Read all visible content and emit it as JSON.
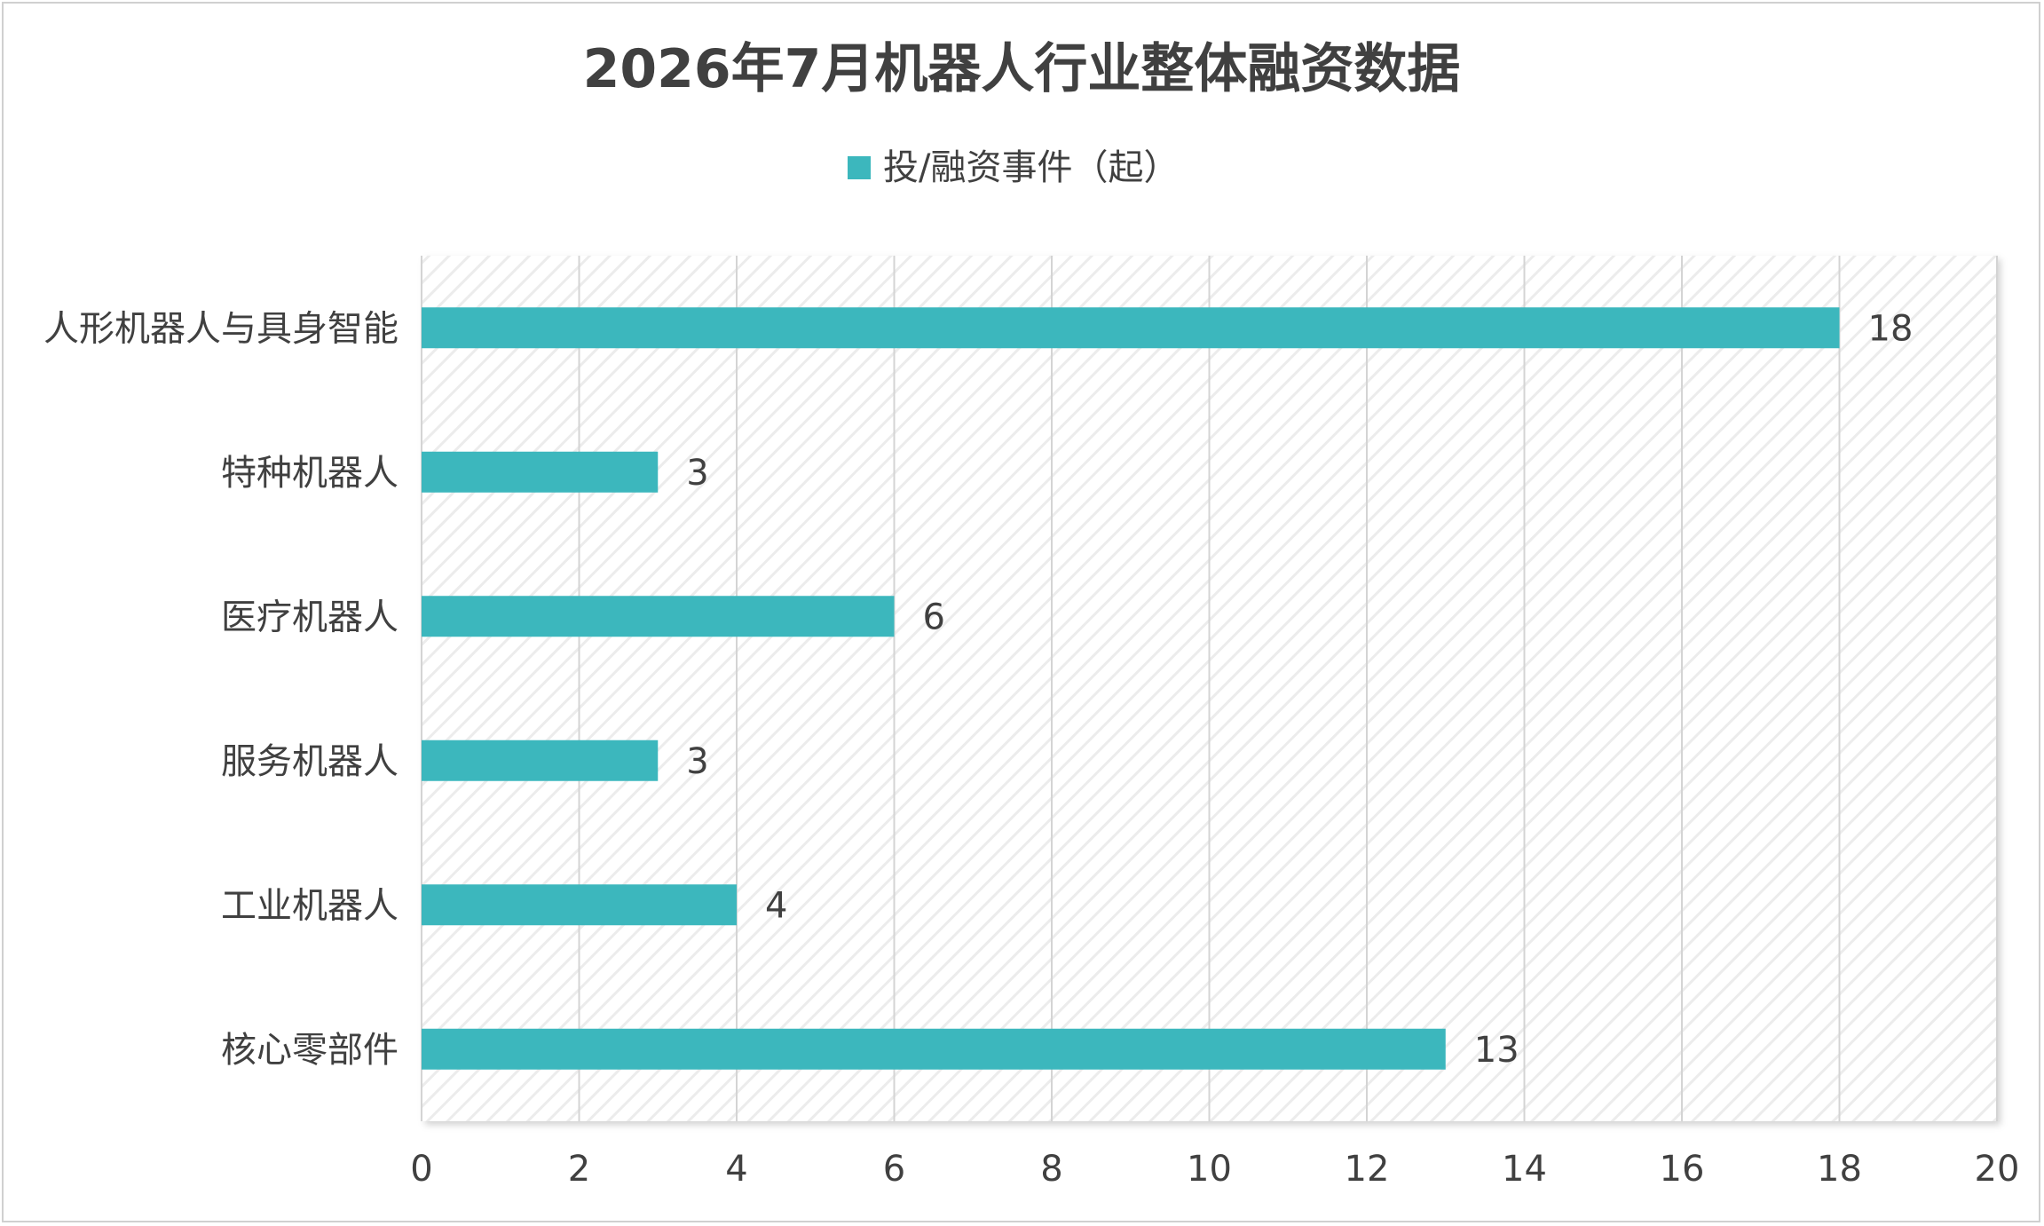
{
  "chart_data": {
    "type": "bar",
    "orientation": "horizontal",
    "title": "2026年7月机器人行业整体融资数据",
    "categories": [
      "人形机器人与具身智能",
      "特种机器人",
      "医疗机器人",
      "服务机器人",
      "工业机器人",
      "核心零部件"
    ],
    "series": [
      {
        "name": "投/融资事件（起）",
        "values": [
          18,
          3,
          6,
          3,
          4,
          13
        ],
        "color": "#3CB7BD"
      }
    ],
    "xlim": [
      0,
      20
    ],
    "xticks": [
      "0",
      "2",
      "4",
      "6",
      "8",
      "10",
      "12",
      "14",
      "16",
      "18",
      "20"
    ],
    "grid": true,
    "legend_position": "top",
    "data_labels": [
      "18",
      "3",
      "6",
      "3",
      "4",
      "13"
    ]
  }
}
